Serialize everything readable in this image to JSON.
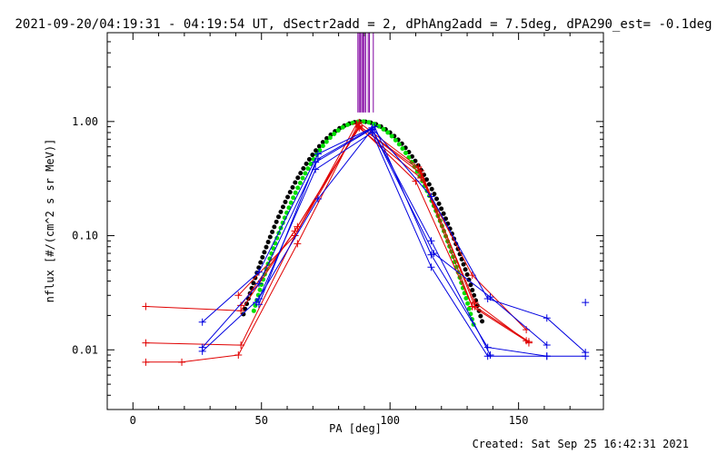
{
  "chart_data": {
    "type": "scatter",
    "title": "2021-09-20/04:19:31 - 04:19:54 UT, dSectr2add = 2, dPhAng2add = 7.5deg, dPA290_est= -0.1deg",
    "xlabel": "PA [deg]",
    "ylabel": "nflux [#/(cm^2 s sr MeV)]",
    "xlim": [
      -10,
      183
    ],
    "ylim": [
      0.003,
      6.0
    ],
    "yscale": "log",
    "xticks": [
      0,
      50,
      100,
      150
    ],
    "yticks": [
      {
        "value": 0.01,
        "label": "0.01"
      },
      {
        "value": 0.1,
        "label": "0.10"
      },
      {
        "value": 1.0,
        "label": "1.00"
      }
    ],
    "footer": "Created: Sat Sep 25 16:42:31 2021",
    "colors": {
      "red": "#e00000",
      "blue": "#0000e0",
      "black": "#000000",
      "green": "#00e000",
      "purple": "#8000a0"
    },
    "vertical_lines": {
      "color": "purple",
      "x": [
        87.5,
        88.0,
        88.5,
        89.0,
        89.5,
        90.0,
        90.5,
        91.5,
        92.0,
        93.5
      ],
      "from": 1.2,
      "to": 6.0
    },
    "series": [
      {
        "name": "red-1",
        "color": "red",
        "x": [
          5,
          19,
          41,
          64,
          88,
          111,
          132,
          153
        ],
        "y": [
          0.0078,
          0.0078,
          0.009,
          0.085,
          0.98,
          0.4,
          0.024,
          0.012
        ]
      },
      {
        "name": "red-2",
        "color": "red",
        "x": [
          5,
          42,
          63,
          88,
          112,
          133,
          154
        ],
        "y": [
          0.0115,
          0.011,
          0.1,
          0.92,
          0.35,
          0.026,
          0.0115
        ]
      },
      {
        "name": "red-3",
        "color": "red",
        "x": [
          5,
          42,
          64,
          88,
          112,
          132,
          153
        ],
        "y": [
          0.024,
          0.022,
          0.12,
          0.88,
          0.32,
          0.045,
          0.015
        ]
      },
      {
        "name": "red-4",
        "color": "red",
        "x": [
          41,
          63,
          87,
          112,
          133,
          154
        ],
        "y": [
          0.03,
          0.1,
          0.95,
          0.37,
          0.024,
          0.0118
        ]
      },
      {
        "name": "red-5",
        "color": "red",
        "x": [
          42,
          63,
          88,
          110,
          132
        ],
        "y": [
          0.0245,
          0.11,
          0.9,
          0.3,
          0.024
        ]
      },
      {
        "name": "blue-1",
        "color": "blue",
        "x": [
          27,
          49,
          72,
          93,
          116,
          138,
          161,
          176
        ],
        "y": [
          0.0175,
          0.048,
          0.52,
          0.88,
          0.22,
          0.028,
          0.019,
          0.0095
        ]
      },
      {
        "name": "blue-2",
        "color": "blue",
        "x": [
          27,
          49,
          72,
          94,
          116,
          138,
          161,
          176
        ],
        "y": [
          0.0105,
          0.038,
          0.47,
          0.9,
          0.068,
          0.0105,
          0.0088,
          0.0088
        ]
      },
      {
        "name": "blue-3",
        "color": "blue",
        "x": [
          27,
          49,
          71,
          93,
          116,
          138,
          161
        ],
        "y": [
          0.0097,
          0.028,
          0.38,
          0.8,
          0.053,
          0.0088,
          0.0088
        ]
      },
      {
        "name": "blue-4",
        "color": "blue",
        "x": [
          48,
          72,
          93,
          117,
          139,
          161
        ],
        "y": [
          0.026,
          0.21,
          0.85,
          0.07,
          0.029,
          0.011
        ]
      },
      {
        "name": "blue-5",
        "color": "blue",
        "x": [
          49,
          71,
          93,
          116,
          139
        ],
        "y": [
          0.025,
          0.44,
          0.86,
          0.09,
          0.009
        ]
      }
    ],
    "markers_only": {
      "color": "blue",
      "x": [
        176
      ],
      "y": [
        0.026
      ]
    },
    "fits": [
      {
        "name": "black-fit",
        "color": "black",
        "center": 89,
        "sigma": 16.5,
        "amplitude": 1.0,
        "x_range": [
          43,
          136
        ]
      },
      {
        "name": "green-fit",
        "color": "green",
        "center": 89,
        "sigma": 15.2,
        "amplitude": 1.0,
        "x_range": [
          47,
          133
        ]
      }
    ]
  }
}
